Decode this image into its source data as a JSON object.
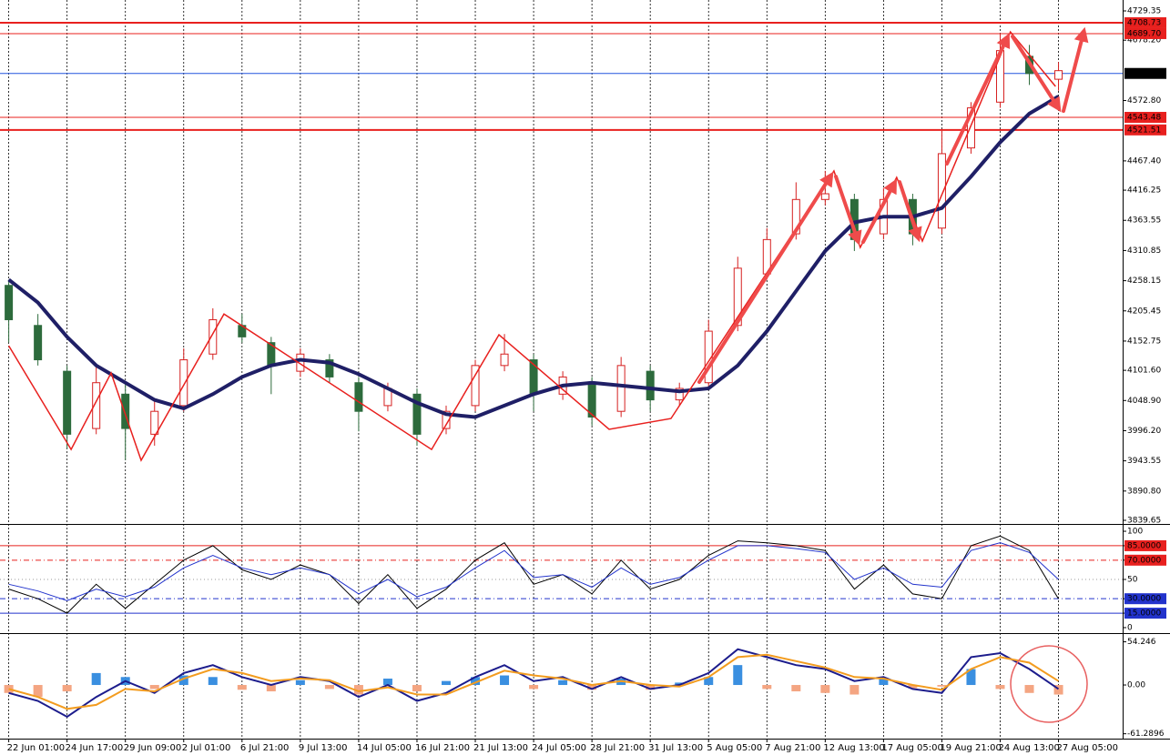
{
  "chart_data": [
    {
      "type": "candlestick",
      "xlim": [
        -0.3,
        38.2
      ],
      "xticks": [
        {
          "value": 0,
          "label": "22 Jun 01:00"
        },
        {
          "value": 2,
          "label": "24 Jun 17:00"
        },
        {
          "value": 4,
          "label": "29 Jun 09:00"
        },
        {
          "value": 6,
          "label": "2 Jul 01:00"
        },
        {
          "value": 8,
          "label": "6 Jul 21:00"
        },
        {
          "value": 10,
          "label": "9 Jul 13:00"
        },
        {
          "value": 12,
          "label": "14 Jul 05:00"
        },
        {
          "value": 14,
          "label": "16 Jul 21:00"
        },
        {
          "value": 16,
          "label": "21 Jul 13:00"
        },
        {
          "value": 18,
          "label": "24 Jul 05:00"
        },
        {
          "value": 20,
          "label": "28 Jul 21:00"
        },
        {
          "value": 22,
          "label": "31 Jul 13:00"
        },
        {
          "value": 24,
          "label": "5 Aug 05:00"
        },
        {
          "value": 26,
          "label": "7 Aug 21:00"
        },
        {
          "value": 28,
          "label": "12 Aug 13:00"
        },
        {
          "value": 30,
          "label": "17 Aug 05:00"
        },
        {
          "value": 32,
          "label": "19 Aug 21:00"
        },
        {
          "value": 34,
          "label": "24 Aug 13:00"
        },
        {
          "value": 36,
          "label": "27 Aug 05:00"
        }
      ],
      "ylim": [
        3834.9,
        4748.4
      ],
      "yticks": [
        4729.35,
        {
          "value": 4678.2,
          "label": "4678.20"
        },
        {
          "value": 4572.8,
          "label": "4572.80"
        },
        {
          "value": 4467.4,
          "label": "4467.40"
        },
        4416.25,
        4363.55,
        4310.85,
        4258.15,
        4205.45,
        4152.75,
        {
          "value": 4101.6,
          "label": "4101.60"
        },
        {
          "value": 4048.9,
          "label": "4048.90"
        },
        {
          "value": 3996.2,
          "label": "3996.20"
        },
        3943.55,
        {
          "value": 3890.8,
          "label": "3890.80"
        },
        3839.65
      ],
      "levels": [
        {
          "value": 4708.73,
          "color": "#e8201e",
          "width": 2
        },
        {
          "value": 4689.7,
          "label": "4689.70",
          "color": "#e8201e",
          "width": 1
        },
        {
          "value": 4620.15,
          "color": "#2255dd",
          "box": "#000000",
          "width": 1
        },
        {
          "value": 4543.48,
          "color": "#e8201e",
          "width": 1
        },
        {
          "value": 4521.51,
          "color": "#e8201e",
          "width": 2
        }
      ],
      "up_color": "#d62020",
      "down_color": "#2d6b3c",
      "open": [
        4250,
        4180,
        4100,
        4000,
        4060,
        3990,
        4040,
        4130,
        4180,
        4150,
        4100,
        4120,
        4080,
        4040,
        4060,
        4000,
        4040,
        4110,
        4120,
        4060,
        4080,
        4030,
        4100,
        4050,
        4080,
        4180,
        4270,
        4340,
        4400,
        4400,
        4340,
        4400,
        4350,
        4490,
        4570,
        4650,
        4610
      ],
      "high": [
        4260,
        4200,
        4110,
        4110,
        4080,
        4050,
        4140,
        4210,
        4200,
        4160,
        4140,
        4130,
        4090,
        4080,
        4070,
        4040,
        4120,
        4165,
        4130,
        4100,
        4090,
        4125,
        4110,
        4080,
        4190,
        4300,
        4350,
        4430,
        4450,
        4410,
        4420,
        4410,
        4520,
        4570,
        4690,
        4670,
        4640
      ],
      "low": [
        4150,
        4110,
        3965,
        3990,
        3945,
        3970,
        4030,
        4120,
        4150,
        4060,
        4090,
        4080,
        3995,
        4030,
        3970,
        3990,
        4030,
        4100,
        4030,
        4050,
        4005,
        4020,
        4030,
        4040,
        4070,
        4170,
        4260,
        4330,
        4390,
        4310,
        4330,
        4320,
        4340,
        4480,
        4560,
        4600,
        4590
      ],
      "close": [
        4190,
        4120,
        3990,
        4080,
        4000,
        4030,
        4120,
        4190,
        4160,
        4110,
        4130,
        4090,
        4030,
        4070,
        3990,
        4030,
        4110,
        4130,
        4060,
        4090,
        4020,
        4110,
        4050,
        4070,
        4170,
        4280,
        4330,
        4400,
        4410,
        4330,
        4400,
        4340,
        4480,
        4560,
        4660,
        4620,
        4625
      ],
      "ma": {
        "color": "#1f1f66",
        "values": [
          4260,
          4220,
          4160,
          4110,
          4080,
          4050,
          4035,
          4060,
          4090,
          4110,
          4120,
          4115,
          4095,
          4070,
          4045,
          4025,
          4020,
          4040,
          4060,
          4075,
          4080,
          4075,
          4070,
          4065,
          4070,
          4110,
          4170,
          4240,
          4310,
          4360,
          4370,
          4370,
          4385,
          4440,
          4500,
          4550,
          4580
        ]
      },
      "zigzag": {
        "color": "#e8201e",
        "x": [
          0.0,
          2.14,
          3.51,
          4.54,
          7.38,
          14.5,
          16.81,
          20.59,
          22.71,
          28.3,
          29.2,
          30.45,
          31.33,
          34.35,
          35.9
        ],
        "values": [
          4144.6,
          3963.5,
          4097.0,
          3944.5,
          4200.0,
          3963.5,
          4163.7,
          3998.5,
          4017.5,
          4449.7,
          4316.2,
          4438.6,
          4327.4,
          4692.8,
          4597.5
        ]
      }
    },
    {
      "type": "line",
      "ylim": [
        -5.7,
        105.7
      ],
      "yticks": [
        100,
        {
          "value": 85,
          "label": "85.0000",
          "color": "#e8201e",
          "line": "solid"
        },
        {
          "value": 70,
          "label": "70.0000",
          "color": "#e8201e",
          "line": "dashdot"
        },
        {
          "value": 50,
          "color": "#999999",
          "line": "dotted"
        },
        {
          "value": 30,
          "label": "30.0000",
          "color": "#2233cc",
          "line": "dashdot"
        },
        {
          "value": 15,
          "label": "15.0000",
          "color": "#2233cc",
          "line": "solid"
        },
        0
      ],
      "series": [
        {
          "color": "#000000",
          "values": [
            40,
            30,
            15,
            45,
            20,
            45,
            70,
            85,
            60,
            50,
            65,
            55,
            25,
            55,
            20,
            40,
            70,
            88,
            45,
            55,
            35,
            70,
            40,
            50,
            75,
            90,
            88,
            85,
            80,
            40,
            65,
            35,
            30,
            85,
            95,
            80,
            30
          ]
        },
        {
          "color": "#2233cc",
          "values": [
            45,
            38,
            28,
            40,
            32,
            42,
            62,
            75,
            62,
            55,
            62,
            55,
            35,
            50,
            32,
            42,
            62,
            80,
            52,
            55,
            42,
            62,
            45,
            52,
            70,
            85,
            85,
            82,
            78,
            50,
            62,
            45,
            42,
            80,
            88,
            78,
            50
          ]
        }
      ]
    },
    {
      "type": "macd",
      "ylim": [
        -67.4,
        62.9
      ],
      "yticks": [
        54.246,
        {
          "value": 0,
          "label": "0.00"
        },
        -61.2896
      ],
      "histogram": {
        "up_color": "#3a8fe0",
        "down_color": "#f4a582",
        "values": [
          -10,
          -15,
          -8,
          15,
          10,
          -5,
          12,
          10,
          -6,
          -8,
          6,
          -5,
          -12,
          8,
          -8,
          5,
          10,
          12,
          -5,
          6,
          -6,
          8,
          -6,
          3,
          10,
          25,
          -5,
          -8,
          -10,
          -12,
          8,
          -4,
          -2,
          20,
          -5,
          -10,
          -12
        ]
      },
      "series": [
        {
          "color": "#1c1c8c",
          "values": [
            -10,
            -20,
            -40,
            -15,
            5,
            -10,
            15,
            25,
            10,
            0,
            10,
            5,
            -15,
            0,
            -20,
            -10,
            10,
            25,
            5,
            10,
            -5,
            10,
            -5,
            0,
            15,
            45,
            35,
            25,
            20,
            5,
            10,
            -5,
            -10,
            35,
            40,
            20,
            -5
          ]
        },
        {
          "color": "#f39c1f",
          "values": [
            -5,
            -15,
            -30,
            -25,
            -5,
            -8,
            8,
            20,
            15,
            5,
            8,
            6,
            -8,
            -3,
            -12,
            -12,
            3,
            18,
            12,
            8,
            0,
            5,
            0,
            -2,
            10,
            35,
            38,
            30,
            22,
            10,
            8,
            0,
            -6,
            20,
            35,
            28,
            5
          ]
        }
      ]
    }
  ]
}
